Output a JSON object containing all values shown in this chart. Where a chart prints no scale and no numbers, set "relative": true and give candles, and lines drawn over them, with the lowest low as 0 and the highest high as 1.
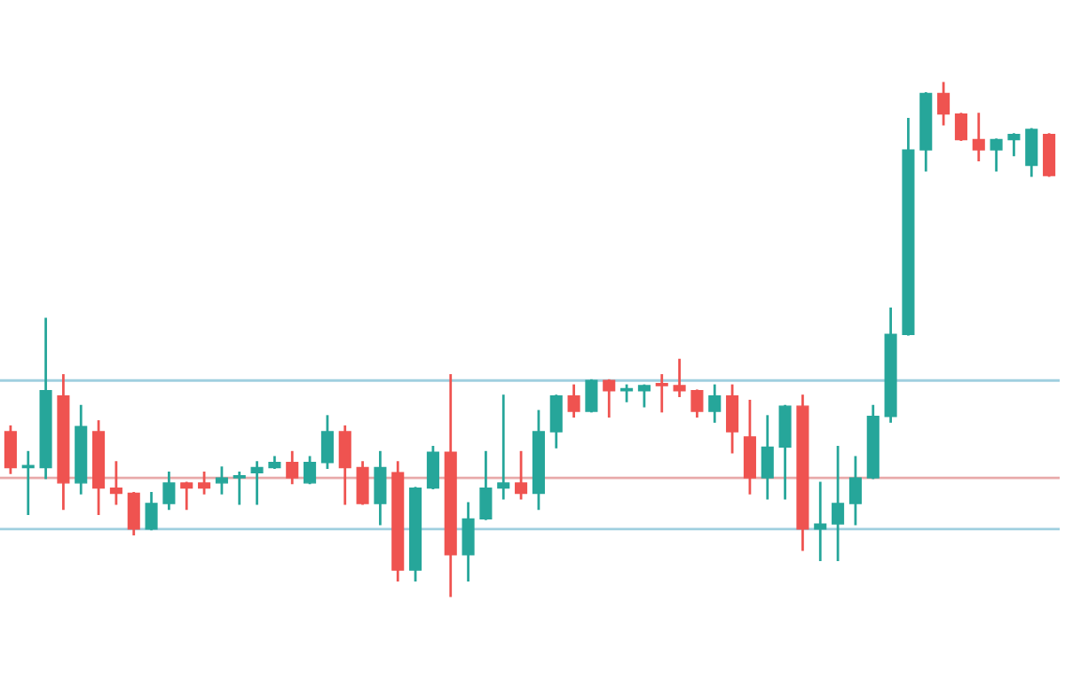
{
  "chart_data": {
    "type": "candlestick",
    "relative": true,
    "categories": [
      null,
      null,
      null,
      null,
      null,
      null,
      null,
      null,
      null,
      null,
      null,
      null,
      null,
      null,
      null,
      null,
      null,
      null,
      null,
      null,
      null,
      null,
      null,
      null,
      null,
      null,
      null,
      null,
      null,
      null,
      null,
      null,
      null,
      null,
      null,
      null,
      null,
      null,
      null,
      null,
      null,
      null,
      null,
      null,
      null,
      null,
      null,
      null,
      null,
      null,
      null,
      null,
      null,
      null,
      null,
      null,
      null,
      null,
      null,
      null
    ],
    "ohlc": [
      [
        0.32,
        0.33,
        0.24,
        0.25
      ],
      [
        0.25,
        0.28,
        0.16,
        0.25
      ],
      [
        0.25,
        0.54,
        0.23,
        0.4
      ],
      [
        0.39,
        0.43,
        0.17,
        0.22
      ],
      [
        0.22,
        0.37,
        0.2,
        0.33
      ],
      [
        0.32,
        0.34,
        0.16,
        0.21
      ],
      [
        0.21,
        0.26,
        0.18,
        0.2
      ],
      [
        0.2,
        0.2,
        0.12,
        0.13
      ],
      [
        0.13,
        0.2,
        0.13,
        0.18
      ],
      [
        0.18,
        0.24,
        0.17,
        0.22
      ],
      [
        0.22,
        0.22,
        0.17,
        0.21
      ],
      [
        0.22,
        0.24,
        0.2,
        0.21
      ],
      [
        0.22,
        0.25,
        0.2,
        0.23
      ],
      [
        0.23,
        0.24,
        0.18,
        0.23
      ],
      [
        0.24,
        0.26,
        0.18,
        0.25
      ],
      [
        0.25,
        0.27,
        0.25,
        0.26
      ],
      [
        0.26,
        0.28,
        0.22,
        0.23
      ],
      [
        0.22,
        0.27,
        0.22,
        0.26
      ],
      [
        0.26,
        0.35,
        0.25,
        0.32
      ],
      [
        0.32,
        0.33,
        0.18,
        0.25
      ],
      [
        0.25,
        0.26,
        0.18,
        0.18
      ],
      [
        0.18,
        0.28,
        0.14,
        0.25
      ],
      [
        0.24,
        0.26,
        0.03,
        0.05
      ],
      [
        0.05,
        0.21,
        0.03,
        0.21
      ],
      [
        0.21,
        0.29,
        0.21,
        0.28
      ],
      [
        0.28,
        0.43,
        0,
        0.08
      ],
      [
        0.08,
        0.18,
        0.03,
        0.15
      ],
      [
        0.15,
        0.28,
        0.15,
        0.21
      ],
      [
        0.21,
        0.39,
        0.19,
        0.22
      ],
      [
        0.22,
        0.28,
        0.19,
        0.2
      ],
      [
        0.2,
        0.36,
        0.17,
        0.32
      ],
      [
        0.32,
        0.39,
        0.29,
        0.39
      ],
      [
        0.39,
        0.41,
        0.35,
        0.36
      ],
      [
        0.36,
        0.42,
        0.36,
        0.42
      ],
      [
        0.42,
        0.42,
        0.35,
        0.4
      ],
      [
        0.4,
        0.41,
        0.38,
        0.4
      ],
      [
        0.4,
        0.41,
        0.37,
        0.41
      ],
      [
        0.41,
        0.43,
        0.36,
        0.41
      ],
      [
        0.41,
        0.46,
        0.39,
        0.4
      ],
      [
        0.4,
        0.4,
        0.35,
        0.36
      ],
      [
        0.36,
        0.41,
        0.34,
        0.39
      ],
      [
        0.39,
        0.41,
        0.28,
        0.32
      ],
      [
        0.31,
        0.38,
        0.2,
        0.23
      ],
      [
        0.23,
        0.35,
        0.19,
        0.29
      ],
      [
        0.29,
        0.37,
        0.19,
        0.37
      ],
      [
        0.37,
        0.39,
        0.09,
        0.13
      ],
      [
        0.13,
        0.22,
        0.07,
        0.14
      ],
      [
        0.14,
        0.29,
        0.07,
        0.18
      ],
      [
        0.18,
        0.27,
        0.14,
        0.23
      ],
      [
        0.23,
        0.37,
        0.23,
        0.35
      ],
      [
        0.35,
        0.56,
        0.34,
        0.51
      ],
      [
        0.51,
        0.93,
        0.51,
        0.87
      ],
      [
        0.87,
        0.98,
        0.83,
        0.98
      ],
      [
        0.98,
        1,
        0.92,
        0.94
      ],
      [
        0.94,
        0.94,
        0.89,
        0.89
      ],
      [
        0.89,
        0.94,
        0.85,
        0.87
      ],
      [
        0.87,
        0.89,
        0.83,
        0.89
      ],
      [
        0.89,
        0.9,
        0.86,
        0.9
      ],
      [
        0.84,
        0.91,
        0.82,
        0.91
      ],
      [
        0.9,
        0.9,
        0.82,
        0.82
      ]
    ],
    "colors": [
      "#ef5350",
      "#26a69a",
      "#26a69a",
      "#ef5350",
      "#26a69a",
      "#ef5350",
      "#ef5350",
      "#ef5350",
      "#26a69a",
      "#26a69a",
      "#ef5350",
      "#ef5350",
      "#26a69a",
      "#26a69a",
      "#26a69a",
      "#26a69a",
      "#ef5350",
      "#26a69a",
      "#26a69a",
      "#ef5350",
      "#ef5350",
      "#26a69a",
      "#ef5350",
      "#26a69a",
      "#26a69a",
      "#ef5350",
      "#26a69a",
      "#26a69a",
      "#26a69a",
      "#ef5350",
      "#26a69a",
      "#26a69a",
      "#ef5350",
      "#26a69a",
      "#ef5350",
      "#26a69a",
      "#26a69a",
      "#ef5350",
      "#ef5350",
      "#ef5350",
      "#26a69a",
      "#ef5350",
      "#ef5350",
      "#26a69a",
      "#26a69a",
      "#ef5350",
      "#26a69a",
      "#26a69a",
      "#26a69a",
      "#26a69a",
      "#26a69a",
      "#26a69a",
      "#26a69a",
      "#ef5350",
      "#ef5350",
      "#ef5350",
      "#26a69a",
      "#26a69a",
      "#26a69a",
      "#ef5350"
    ],
    "ref_lines": [
      {
        "axis": "y",
        "value": 0.42,
        "color": "#9fcfdf"
      },
      {
        "axis": "y",
        "value": 0.13,
        "color": "#9fcfdf"
      },
      {
        "axis": "y",
        "value": 0.23,
        "color": "#e8a9a9"
      }
    ]
  }
}
